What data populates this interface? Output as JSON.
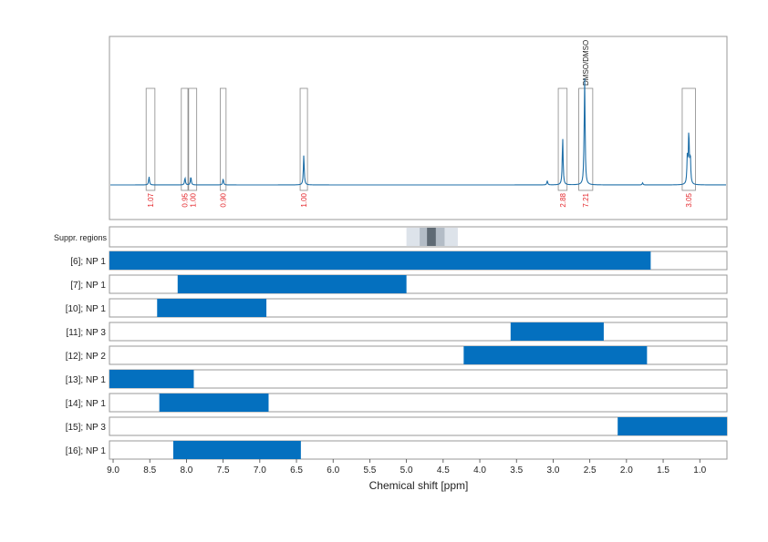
{
  "colors": {
    "spectrum": "#1f6fa8",
    "bar": "#0470bf",
    "integral": "#e3262b",
    "grid": "#cfcfcf",
    "frame": "#999999",
    "suppression_light": "#dde3ea",
    "suppression_mid": "#b3bcc6",
    "suppression_dark": "#5f6a74"
  },
  "chart_data": {
    "type": "line",
    "xlabel": "Chemical shift [ppm]",
    "xlim": [
      9.05,
      0.63
    ],
    "x_ticks": [
      "9.0",
      "8.5",
      "8.0",
      "7.5",
      "7.0",
      "6.5",
      "6.0",
      "5.5",
      "5.0",
      "4.5",
      "4.0",
      "3.5",
      "3.0",
      "2.5",
      "2.0",
      "1.5",
      "1.0"
    ],
    "x_tick_values": [
      9.0,
      8.5,
      8.0,
      7.5,
      7.0,
      6.5,
      6.0,
      5.5,
      5.0,
      4.5,
      4.0,
      3.5,
      3.0,
      2.5,
      2.0,
      1.5,
      1.0
    ],
    "grid": true,
    "peaks": [
      {
        "ppm": 8.51,
        "height": 0.08
      },
      {
        "ppm": 8.02,
        "height": 0.07
      },
      {
        "ppm": 7.94,
        "height": 0.08
      },
      {
        "ppm": 7.5,
        "height": 0.06
      },
      {
        "ppm": 6.4,
        "height": 0.29
      },
      {
        "ppm": 3.08,
        "height": 0.04
      },
      {
        "ppm": 2.87,
        "height": 0.46
      },
      {
        "ppm": 2.57,
        "height": 1.0
      },
      {
        "ppm": 2.58,
        "height": 0.1
      },
      {
        "ppm": 1.78,
        "height": 0.02
      },
      {
        "ppm": 1.17,
        "height": 0.26
      },
      {
        "ppm": 1.15,
        "height": 0.5
      },
      {
        "ppm": 1.13,
        "height": 0.26
      }
    ],
    "integration_regions": [
      {
        "from": 8.55,
        "to": 8.43,
        "value": "1.07"
      },
      {
        "from": 8.07,
        "to": 7.98,
        "value": "0.95"
      },
      {
        "from": 7.97,
        "to": 7.86,
        "value": "1.00"
      },
      {
        "from": 7.54,
        "to": 7.46,
        "value": "0.90"
      },
      {
        "from": 6.45,
        "to": 6.35,
        "value": "1.00"
      },
      {
        "from": 2.93,
        "to": 2.81,
        "value": "2.88"
      },
      {
        "from": 2.65,
        "to": 2.46,
        "value": "7.21",
        "label": "DMSO/DMSO"
      },
      {
        "from": 1.24,
        "to": 1.06,
        "value": "3.05"
      }
    ],
    "suppression": {
      "label": "Suppr. regions",
      "bands": [
        {
          "from": 5.0,
          "to": 4.3,
          "level": "light"
        },
        {
          "from": 4.82,
          "to": 4.48,
          "level": "mid"
        },
        {
          "from": 4.72,
          "to": 4.6,
          "level": "dark"
        }
      ]
    },
    "bars": [
      {
        "label": "[6]; NP 1",
        "from": 9.05,
        "to": 1.67
      },
      {
        "label": "[7]; NP 1",
        "from": 8.12,
        "to": 5.0
      },
      {
        "label": "[10]; NP 1",
        "from": 8.4,
        "to": 6.91
      },
      {
        "label": "[11]; NP 3",
        "from": 3.58,
        "to": 2.31
      },
      {
        "label": "[12]; NP 2",
        "from": 4.22,
        "to": 1.72
      },
      {
        "label": "[13]; NP 1",
        "from": 9.05,
        "to": 7.9
      },
      {
        "label": "[14]; NP 1",
        "from": 8.37,
        "to": 6.88
      },
      {
        "label": "[15]; NP 3",
        "from": 2.12,
        "to": 0.63
      },
      {
        "label": "[16]; NP 1",
        "from": 8.18,
        "to": 6.44
      }
    ]
  }
}
